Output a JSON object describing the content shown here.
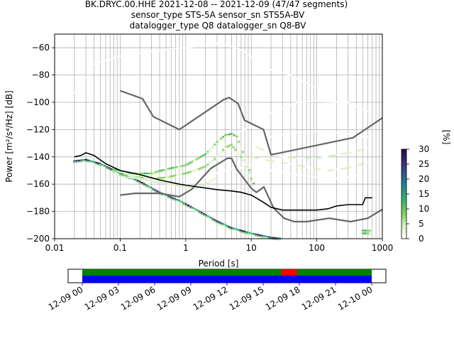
{
  "title": {
    "line1": "BK.DRYC.00.HHE   2021-12-08 -- 2021-12-09  (47/47 segments)",
    "line2": "sensor_type STS-5A sensor_sn STS5A-BV",
    "line3": "datalogger_type Q8 datalogger_sn Q8-BV"
  },
  "chart_data": [
    {
      "type": "heatmap",
      "name": "ppsd",
      "xlabel": "Period [s]",
      "ylabel": "Power [m²/s⁴/Hz] [dB]",
      "xscale": "log",
      "xlim": [
        0.01,
        1000
      ],
      "ylim": [
        -200,
        -50
      ],
      "xticks": [
        {
          "v": 0.01,
          "label": "0.01"
        },
        {
          "v": 0.1,
          "label": "0.1"
        },
        {
          "v": 1,
          "label": "1"
        },
        {
          "v": 10,
          "label": "10"
        },
        {
          "v": 100,
          "label": "100"
        },
        {
          "v": 1000,
          "label": "1000"
        }
      ],
      "yticks": [
        -60,
        -80,
        -100,
        -120,
        -140,
        -160,
        -180,
        -200
      ],
      "grid": true,
      "colorbar": {
        "label": "[%]",
        "min": 0,
        "max": 30,
        "ticks": [
          0,
          5,
          10,
          15,
          20,
          25,
          30
        ],
        "colors": [
          "#ffffff",
          "#d9f0c2",
          "#7ccf5a",
          "#35b46e",
          "#1f8e8a",
          "#2d5c8c",
          "#3e2a72",
          "#2a0a3e"
        ]
      },
      "noise_models": [
        {
          "name": "NHNM",
          "color": "#666666",
          "points": [
            [
              0.1,
              -91.5
            ],
            [
              0.22,
              -97.4
            ],
            [
              0.32,
              -110.5
            ],
            [
              0.8,
              -120
            ],
            [
              3.8,
              -98
            ],
            [
              4.6,
              -96.5
            ],
            [
              6.3,
              -101
            ],
            [
              7.9,
              -113.2
            ],
            [
              15.4,
              -120
            ],
            [
              20,
              -138.5
            ],
            [
              354.8,
              -126
            ],
            [
              1000,
              -111.5
            ]
          ]
        },
        {
          "name": "NLNM",
          "color": "#666666",
          "points": [
            [
              0.1,
              -168
            ],
            [
              0.17,
              -166.7
            ],
            [
              0.4,
              -166.7
            ],
            [
              0.8,
              -169.2
            ],
            [
              1.24,
              -163.7
            ],
            [
              2.4,
              -148.6
            ],
            [
              4.3,
              -141.1
            ],
            [
              5,
              -141.1
            ],
            [
              6,
              -149
            ],
            [
              10,
              -163
            ],
            [
              12,
              -166
            ],
            [
              15.6,
              -162.1
            ],
            [
              21.9,
              -177.5
            ],
            [
              31.6,
              -185
            ],
            [
              45,
              -187.5
            ],
            [
              70,
              -187.5
            ],
            [
              154.5,
              -185
            ],
            [
              328.4,
              -187.5
            ],
            [
              600,
              -185
            ],
            [
              1000,
              -178.5
            ]
          ]
        }
      ],
      "mean_line": {
        "name": "mean",
        "color": "#000000",
        "points": [
          [
            0.02,
            -140
          ],
          [
            0.025,
            -139
          ],
          [
            0.03,
            -137
          ],
          [
            0.04,
            -139
          ],
          [
            0.06,
            -145
          ],
          [
            0.1,
            -150
          ],
          [
            0.2,
            -153
          ],
          [
            0.4,
            -157
          ],
          [
            0.8,
            -160
          ],
          [
            1.5,
            -162
          ],
          [
            3,
            -164
          ],
          [
            5,
            -165
          ],
          [
            7,
            -166
          ],
          [
            10,
            -168
          ],
          [
            15,
            -173
          ],
          [
            20,
            -177
          ],
          [
            30,
            -179
          ],
          [
            100,
            -179
          ],
          [
            150,
            -178
          ],
          [
            200,
            -176
          ],
          [
            300,
            -175
          ],
          [
            500,
            -175
          ],
          [
            550,
            -170
          ],
          [
            700,
            -170
          ]
        ]
      },
      "pdf_traces": [
        {
          "label": "lower_branch",
          "level": 28,
          "points": [
            [
              0.02,
              -143
            ],
            [
              0.03,
              -142
            ],
            [
              0.05,
              -145
            ],
            [
              0.1,
              -152
            ],
            [
              0.2,
              -158
            ],
            [
              0.4,
              -166
            ],
            [
              0.8,
              -172
            ],
            [
              1.5,
              -179
            ],
            [
              3,
              -187
            ],
            [
              5,
              -192
            ],
            [
              10,
              -196
            ],
            [
              20,
              -199
            ],
            [
              30,
              -200
            ]
          ]
        },
        {
          "label": "green_hump",
          "level": 12,
          "points": [
            [
              0.08,
              -149
            ],
            [
              0.15,
              -152
            ],
            [
              0.3,
              -152
            ],
            [
              0.5,
              -149
            ],
            [
              1,
              -146
            ],
            [
              2,
              -138
            ],
            [
              3,
              -129
            ],
            [
              4,
              -124
            ],
            [
              5,
              -123
            ],
            [
              6,
              -125
            ],
            [
              8,
              -140
            ],
            [
              10,
              -156
            ],
            [
              12,
              -163
            ]
          ]
        },
        {
          "label": "lower_green_hump",
          "level": 9,
          "points": [
            [
              0.1,
              -153
            ],
            [
              0.2,
              -155
            ],
            [
              0.3,
              -156
            ],
            [
              0.5,
              -155
            ],
            [
              1,
              -152
            ],
            [
              2,
              -147
            ],
            [
              3,
              -140
            ],
            [
              4,
              -133
            ],
            [
              5,
              -131
            ],
            [
              7,
              -140
            ],
            [
              10,
              -152
            ]
          ]
        },
        {
          "label": "low_band",
          "level": 6,
          "points": [
            [
              0.15,
              -154
            ],
            [
              0.3,
              -158
            ],
            [
              0.6,
              -160
            ],
            [
              1,
              -162
            ],
            [
              1.5,
              -163
            ],
            [
              2,
              -160
            ],
            [
              3,
              -155
            ]
          ]
        },
        {
          "label": "upper_light_band",
          "level": 2,
          "points": [
            [
              0.02,
              -93
            ],
            [
              0.025,
              -85
            ],
            [
              0.03,
              -82
            ],
            [
              0.04,
              -72
            ],
            [
              0.1,
              -66
            ],
            [
              0.5,
              -61
            ],
            [
              1,
              -60
            ],
            [
              2,
              -58
            ],
            [
              3,
              -57
            ],
            [
              5,
              -59
            ],
            [
              8,
              -63
            ],
            [
              10,
              -67
            ],
            [
              20,
              -76
            ],
            [
              40,
              -80
            ],
            [
              70,
              -86
            ],
            [
              100,
              -90
            ]
          ]
        },
        {
          "label": "mid_light_band_a",
          "level": 2,
          "points": [
            [
              6,
              -122
            ],
            [
              10,
              -118
            ],
            [
              20,
              -108
            ],
            [
              50,
              -100
            ],
            [
              100,
              -99
            ],
            [
              300,
              -100
            ],
            [
              700,
              -108
            ]
          ]
        },
        {
          "label": "mid_light_band_b",
          "level": 2,
          "points": [
            [
              12,
              -128
            ],
            [
              20,
              -125
            ],
            [
              50,
              -122
            ],
            [
              100,
              -121
            ],
            [
              300,
              -123
            ],
            [
              700,
              -126
            ]
          ]
        },
        {
          "label": "mid_light_band_c",
          "level": 3,
          "points": [
            [
              12,
              -133
            ],
            [
              20,
              -137
            ],
            [
              30,
              -140
            ],
            [
              60,
              -141
            ],
            [
              100,
              -141
            ],
            [
              300,
              -137
            ],
            [
              700,
              -133
            ]
          ]
        },
        {
          "label": "mid_light_band_d",
          "level": 3,
          "points": [
            [
              10,
              -140
            ],
            [
              20,
              -143
            ],
            [
              40,
              -145
            ],
            [
              80,
              -148
            ],
            [
              150,
              -150
            ],
            [
              300,
              -148
            ],
            [
              700,
              -143
            ]
          ]
        },
        {
          "label": "mid_light_band_e",
          "level": 2,
          "points": [
            [
              8,
              -145
            ],
            [
              20,
              -150
            ],
            [
              50,
              -153
            ],
            [
              100,
              -155
            ],
            [
              200,
              -156
            ],
            [
              500,
              -153
            ]
          ]
        },
        {
          "label": "low_light_band",
          "level": 2,
          "points": [
            [
              1,
              -160
            ],
            [
              1.3,
              -158
            ],
            [
              2,
              -155
            ],
            [
              3,
              -152
            ],
            [
              4,
              -150
            ],
            [
              6,
              -148
            ],
            [
              8,
              -148
            ]
          ]
        },
        {
          "label": "long_period_cluster_a",
          "level": 14,
          "points": [
            [
              500,
              -194
            ],
            [
              550,
              -194
            ],
            [
              600,
              -194
            ],
            [
              700,
              -194
            ]
          ]
        },
        {
          "label": "long_period_cluster_b",
          "level": 12,
          "points": [
            [
              500,
              -196
            ],
            [
              550,
              -196
            ],
            [
              600,
              -196
            ],
            [
              700,
              -196
            ]
          ]
        }
      ]
    },
    {
      "type": "timeline",
      "name": "data_availability",
      "xlim": [
        "12-09 00",
        "12-10 00"
      ],
      "tick_labels": [
        "12-09 00",
        "12-09 03",
        "12-09 06",
        "12-09 09",
        "12-09 12",
        "12-09 15",
        "12-09 18",
        "12-09 21",
        "12-10 00"
      ],
      "top_bar": {
        "color": "#008000",
        "gap": {
          "start_hour": 16.5,
          "end_hour": 17.8,
          "color": "#ff0000"
        }
      },
      "bottom_bar": {
        "color": "#0000ff"
      }
    }
  ]
}
